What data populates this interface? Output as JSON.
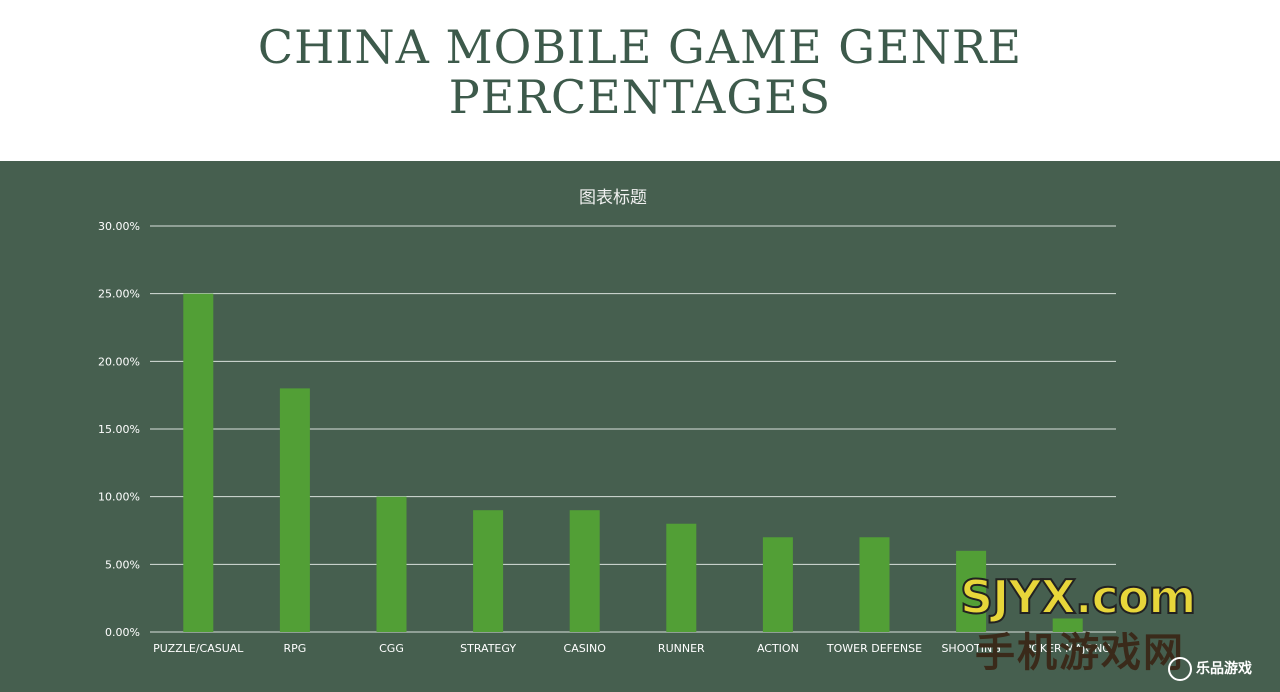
{
  "page": {
    "title_line1": "CHINA MOBILE GAME GENRE",
    "title_line2": "PERCENTAGES"
  },
  "colors": {
    "panel": "#465f4f",
    "bar": "#529f36",
    "title": "#3d5a4b",
    "grid": "#d9e0dc",
    "text": "#ffffff"
  },
  "chart_data": {
    "type": "bar",
    "title": "图表标题",
    "categories": [
      "PUZZLE/CASUAL",
      "RPG",
      "CGG",
      "STRATEGY",
      "CASINO",
      "RUNNER",
      "ACTION",
      "TOWER DEFENSE",
      "SHOOTING",
      "POKER MAJONG"
    ],
    "values": [
      25,
      18,
      10,
      9,
      9,
      8,
      7,
      7,
      6,
      1
    ],
    "ylim": [
      0,
      30
    ],
    "yticks": [
      "0.00%",
      "5.00%",
      "10.00%",
      "15.00%",
      "20.00%",
      "25.00%",
      "30.00%"
    ],
    "ytick_values": [
      0,
      5,
      10,
      15,
      20,
      25,
      30
    ],
    "grid": true,
    "legend": "none",
    "xlabel": "",
    "ylabel": ""
  },
  "watermark": {
    "site": "SJYX.com",
    "cn": "手机游戏网",
    "badge": "乐品游戏"
  }
}
